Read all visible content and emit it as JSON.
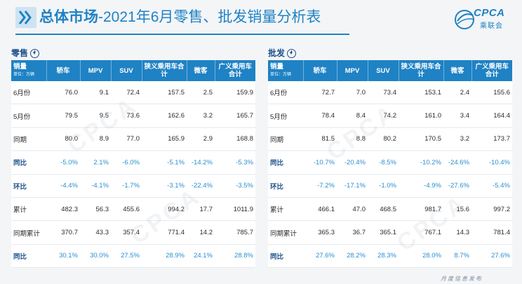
{
  "header": {
    "title_bold": "总体市场",
    "title_rest": "-2021年6月零售、批发销量分析表",
    "logo_text": "CPCA",
    "logo_sub": "乘联会"
  },
  "columns": [
    "销量",
    "轿车",
    "MPV",
    "SUV",
    "狭义乘用车合计",
    "微客",
    "广义乘用车合计"
  ],
  "unit": "单位：万辆",
  "retail": {
    "label": "零售",
    "rows": [
      {
        "label": "6月份",
        "values": [
          "76.0",
          "9.1",
          "72.4",
          "157.5",
          "2.5",
          "159.9"
        ],
        "pct": false
      },
      {
        "label": "5月份",
        "values": [
          "79.5",
          "9.5",
          "73.6",
          "162.6",
          "3.2",
          "165.7"
        ],
        "pct": false
      },
      {
        "label": "同期",
        "values": [
          "80.0",
          "8.9",
          "77.0",
          "165.9",
          "2.9",
          "168.8"
        ],
        "pct": false
      },
      {
        "label": "同比",
        "values": [
          "-5.0%",
          "2.1%",
          "-6.0%",
          "-5.1%",
          "-14.2%",
          "-5.3%"
        ],
        "pct": true
      },
      {
        "label": "环比",
        "values": [
          "-4.4%",
          "-4.1%",
          "-1.7%",
          "-3.1%",
          "-22.4%",
          "-3.5%"
        ],
        "pct": true
      },
      {
        "label": "累计",
        "values": [
          "482.3",
          "56.3",
          "455.6",
          "994.2",
          "17.7",
          "1011.9"
        ],
        "pct": false
      },
      {
        "label": "同期累计",
        "values": [
          "370.7",
          "43.3",
          "357.4",
          "771.4",
          "14.2",
          "785.7"
        ],
        "pct": false
      },
      {
        "label": "同比",
        "values": [
          "30.1%",
          "30.0%",
          "27.5%",
          "28.9%",
          "24.1%",
          "28.8%"
        ],
        "pct": true
      }
    ]
  },
  "wholesale": {
    "label": "批发",
    "rows": [
      {
        "label": "6月份",
        "values": [
          "72.7",
          "7.0",
          "73.4",
          "153.1",
          "2.4",
          "155.6"
        ],
        "pct": false
      },
      {
        "label": "5月份",
        "values": [
          "78.4",
          "8.4",
          "74.2",
          "161.0",
          "3.4",
          "164.4"
        ],
        "pct": false
      },
      {
        "label": "同期",
        "values": [
          "81.5",
          "8.8",
          "80.2",
          "170.5",
          "3.2",
          "173.7"
        ],
        "pct": false
      },
      {
        "label": "同比",
        "values": [
          "-10.7%",
          "-20.4%",
          "-8.5%",
          "-10.2%",
          "-24.6%",
          "-10.4%"
        ],
        "pct": true
      },
      {
        "label": "环比",
        "values": [
          "-7.2%",
          "-17.1%",
          "-1.0%",
          "-4.9%",
          "-27.6%",
          "-5.4%"
        ],
        "pct": true
      },
      {
        "label": "累计",
        "values": [
          "466.1",
          "47.0",
          "468.5",
          "981.7",
          "15.6",
          "997.2"
        ],
        "pct": false
      },
      {
        "label": "同期累计",
        "values": [
          "365.3",
          "36.7",
          "365.1",
          "767.1",
          "14.3",
          "781.4"
        ],
        "pct": false
      },
      {
        "label": "同比",
        "values": [
          "27.6%",
          "28.2%",
          "28.3%",
          "28.0%",
          "8.7%",
          "27.6%"
        ],
        "pct": true
      }
    ]
  },
  "watermark": "CPCA",
  "footer": "月度信息发布"
}
